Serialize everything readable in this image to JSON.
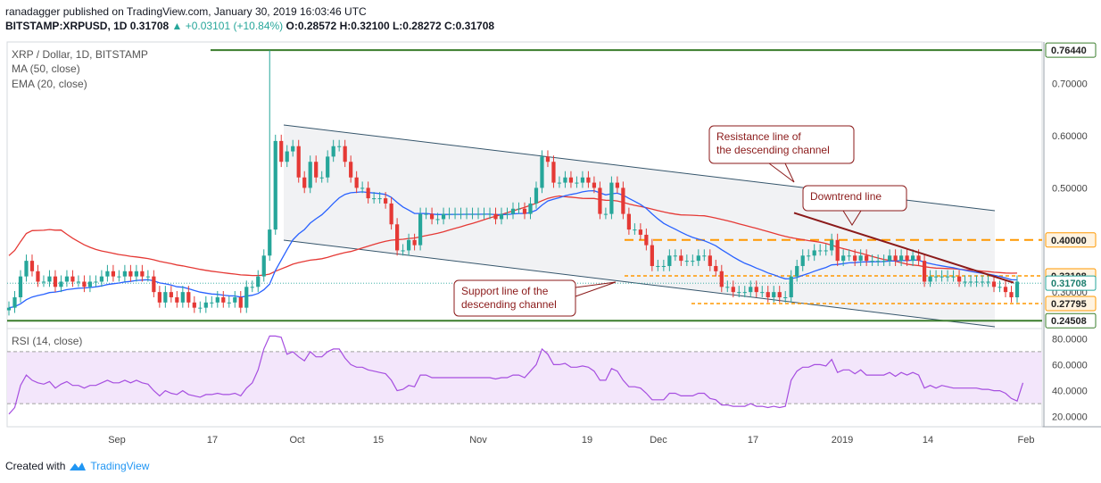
{
  "header": {
    "line1": "ranadagger published on TradingView.com, January 30, 2019 16:03:46 UTC",
    "symbol": "BITSTAMP:XRPUSD, 1D",
    "close": "0.31708",
    "change": "▲ +0.03101 (+10.84%)",
    "o": "O:0.28572",
    "h": "H:0.32100",
    "l": "L:0.28272",
    "c": "C:0.31708"
  },
  "legend": {
    "title": "XRP / Dollar, 1D, BITSTAMP",
    "ma": "MA (50, close)",
    "ema": "EMA (20, close)",
    "rsi": "RSI (14, close)"
  },
  "footer": {
    "created_with": "Created with",
    "brand": "TradingView"
  },
  "colors": {
    "up": "#26a69a",
    "down": "#e53935",
    "ma": "#e53935",
    "ema": "#2962ff",
    "green_line": "#3a7d2c",
    "orange": "#ff9800",
    "trend": "#8b1a1a",
    "rsi": "#a64ee0",
    "channel_fill": "#f1f2f4"
  },
  "annotations": {
    "resistance": [
      "Resistance line of",
      "the descending channel"
    ],
    "downtrend": [
      "Downtrend line"
    ],
    "support": [
      "Support line of the",
      "descending channel"
    ]
  },
  "chart_data": [
    {
      "type": "candlestick",
      "title": "XRP / Dollar, 1D, BITSTAMP",
      "x_ticks": [
        "Sep",
        "17",
        "Oct",
        "15",
        "Nov",
        "19",
        "Dec",
        "17",
        "2019",
        "14",
        "Feb"
      ],
      "y_ticks": [
        "0.70000",
        "0.60000",
        "0.50000",
        "0.40000",
        "0.30000",
        "0.20000"
      ],
      "ylim": [
        0.23,
        0.78
      ],
      "price_labels": [
        {
          "value": 0.7644,
          "label": "0.76440",
          "style": "green"
        },
        {
          "value": 0.4,
          "label": "0.40000",
          "style": "orange"
        },
        {
          "value": 0.33108,
          "label": "0.33108",
          "style": "orange"
        },
        {
          "value": 0.31708,
          "label": "0.31708",
          "style": "green"
        },
        {
          "value": 0.27795,
          "label": "0.27795",
          "style": "orange"
        },
        {
          "value": 0.24508,
          "label": "0.24508",
          "style": "green"
        }
      ],
      "closes": [
        0.27,
        0.29,
        0.33,
        0.36,
        0.34,
        0.32,
        0.32,
        0.33,
        0.31,
        0.32,
        0.33,
        0.32,
        0.32,
        0.31,
        0.32,
        0.32,
        0.33,
        0.34,
        0.33,
        0.33,
        0.34,
        0.33,
        0.34,
        0.33,
        0.33,
        0.3,
        0.28,
        0.3,
        0.29,
        0.28,
        0.3,
        0.28,
        0.27,
        0.27,
        0.28,
        0.28,
        0.29,
        0.28,
        0.28,
        0.29,
        0.27,
        0.31,
        0.31,
        0.33,
        0.37,
        0.42,
        0.59,
        0.55,
        0.57,
        0.58,
        0.52,
        0.5,
        0.55,
        0.52,
        0.52,
        0.56,
        0.58,
        0.58,
        0.55,
        0.52,
        0.5,
        0.5,
        0.48,
        0.48,
        0.48,
        0.47,
        0.43,
        0.38,
        0.38,
        0.4,
        0.39,
        0.45,
        0.45,
        0.44,
        0.44,
        0.45,
        0.45,
        0.45,
        0.45,
        0.45,
        0.45,
        0.45,
        0.45,
        0.45,
        0.44,
        0.45,
        0.45,
        0.46,
        0.46,
        0.45,
        0.47,
        0.5,
        0.56,
        0.55,
        0.51,
        0.51,
        0.52,
        0.51,
        0.51,
        0.52,
        0.51,
        0.5,
        0.45,
        0.45,
        0.51,
        0.5,
        0.45,
        0.42,
        0.42,
        0.41,
        0.39,
        0.35,
        0.35,
        0.35,
        0.37,
        0.37,
        0.36,
        0.36,
        0.36,
        0.37,
        0.37,
        0.35,
        0.34,
        0.31,
        0.31,
        0.3,
        0.3,
        0.3,
        0.31,
        0.3,
        0.3,
        0.29,
        0.3,
        0.29,
        0.29,
        0.33,
        0.35,
        0.37,
        0.37,
        0.38,
        0.38,
        0.38,
        0.4,
        0.36,
        0.37,
        0.37,
        0.36,
        0.37,
        0.36,
        0.36,
        0.36,
        0.36,
        0.37,
        0.36,
        0.37,
        0.36,
        0.37,
        0.36,
        0.32,
        0.33,
        0.33,
        0.33,
        0.33,
        0.33,
        0.32,
        0.32,
        0.32,
        0.32,
        0.32,
        0.32,
        0.31,
        0.31,
        0.3,
        0.29,
        0.32
      ],
      "rsi": {
        "ylim": [
          15,
          85
        ],
        "y_ticks": [
          "80.0000",
          "60.0000",
          "40.0000",
          "20.0000"
        ],
        "band": [
          30,
          70
        ],
        "values": [
          22,
          27,
          44,
          52,
          48,
          46,
          45,
          47,
          42,
          45,
          47,
          44,
          44,
          42,
          44,
          44,
          46,
          48,
          46,
          46,
          48,
          46,
          48,
          46,
          45,
          40,
          36,
          40,
          38,
          37,
          40,
          37,
          36,
          35,
          37,
          37,
          38,
          37,
          37,
          38,
          36,
          42,
          46,
          56,
          72,
          82,
          82,
          81,
          68,
          70,
          66,
          63,
          70,
          66,
          66,
          70,
          72,
          72,
          65,
          60,
          58,
          58,
          56,
          55,
          54,
          53,
          48,
          40,
          41,
          44,
          43,
          52,
          52,
          50,
          50,
          50,
          50,
          50,
          50,
          50,
          50,
          50,
          50,
          50,
          49,
          50,
          50,
          52,
          52,
          50,
          55,
          60,
          72,
          68,
          60,
          60,
          61,
          58,
          58,
          59,
          58,
          55,
          48,
          48,
          57,
          55,
          48,
          43,
          43,
          42,
          38,
          33,
          33,
          33,
          38,
          38,
          36,
          36,
          36,
          38,
          38,
          34,
          33,
          29,
          29,
          28,
          28,
          28,
          30,
          28,
          28,
          27,
          28,
          27,
          28,
          48,
          55,
          58,
          58,
          60,
          60,
          59,
          64,
          54,
          56,
          56,
          53,
          56,
          52,
          52,
          52,
          52,
          54,
          51,
          54,
          52,
          54,
          52,
          42,
          44,
          42,
          44,
          43,
          42,
          42,
          42,
          42,
          42,
          41,
          41,
          40,
          40,
          38,
          34,
          32,
          46
        ]
      },
      "rsi_x_ticks": [
        "Sep",
        "17",
        "Oct",
        "15",
        "Nov",
        "19",
        "Dec",
        "17",
        "2019",
        "14",
        "Feb"
      ]
    }
  ]
}
